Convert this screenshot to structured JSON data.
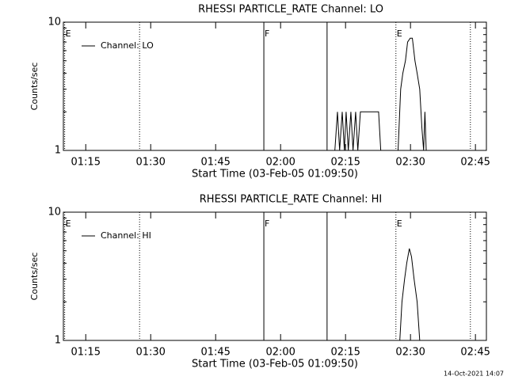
{
  "chart_data": [
    {
      "type": "line",
      "title": "RHESSI PARTICLE_RATE Channel: LO",
      "xlabel": "Start Time (03-Feb-05 01:09:50)",
      "ylabel": "Counts/sec",
      "xlim": [
        0,
        97.7
      ],
      "xticks": [
        {
          "value": 5.167,
          "label": "01:15"
        },
        {
          "value": 20.167,
          "label": "01:30"
        },
        {
          "value": 35.167,
          "label": "01:45"
        },
        {
          "value": 50.167,
          "label": "02:00"
        },
        {
          "value": 65.167,
          "label": "02:15"
        },
        {
          "value": 80.167,
          "label": "02:30"
        },
        {
          "value": 95.167,
          "label": "02:45"
        }
      ],
      "ylim": [
        1,
        10
      ],
      "yticks": [
        1,
        10
      ],
      "minor_yticks": [
        2,
        3,
        4,
        5,
        6,
        7,
        8,
        9
      ],
      "log_y": true,
      "markers": [
        {
          "x": 0.3,
          "style": "dotted",
          "label": "E"
        },
        {
          "x": 17.6,
          "style": "dotted"
        },
        {
          "x": 46.3,
          "style": "solid",
          "label": "F"
        },
        {
          "x": 60.9,
          "style": "solid"
        },
        {
          "x": 76.8,
          "style": "dotted",
          "label": "E"
        },
        {
          "x": 94.0,
          "style": "dotted"
        }
      ],
      "series": [
        {
          "name": "Channel: LO",
          "color": "#000000",
          "x": [
            62.7,
            63.3,
            63.8,
            64.4,
            64.9,
            65.3,
            65.8,
            66.4,
            66.9,
            67.5,
            68.0,
            68.6,
            72.8,
            73.3,
            75.0,
            77.3,
            77.9,
            78.4,
            79.0,
            79.5,
            80.1,
            80.6,
            81.2,
            81.7,
            82.3,
            82.8,
            83.2,
            83.5,
            83.8
          ],
          "values": [
            1,
            2,
            1,
            2,
            1,
            2,
            1,
            2,
            1,
            2,
            1,
            2,
            2,
            1,
            null,
            1,
            3,
            4,
            5,
            7,
            7.5,
            7.5,
            5,
            4,
            3,
            1.5,
            1,
            2,
            1
          ]
        }
      ]
    },
    {
      "type": "line",
      "title": "RHESSI PARTICLE_RATE Channel: HI",
      "xlabel": "Start Time (03-Feb-05 01:09:50)",
      "ylabel": "Counts/sec",
      "xlim": [
        0,
        97.7
      ],
      "xticks": [
        {
          "value": 5.167,
          "label": "01:15"
        },
        {
          "value": 20.167,
          "label": "01:30"
        },
        {
          "value": 35.167,
          "label": "01:45"
        },
        {
          "value": 50.167,
          "label": "02:00"
        },
        {
          "value": 65.167,
          "label": "02:15"
        },
        {
          "value": 80.167,
          "label": "02:30"
        },
        {
          "value": 95.167,
          "label": "02:45"
        }
      ],
      "ylim": [
        1,
        10
      ],
      "yticks": [
        1,
        10
      ],
      "minor_yticks": [
        2,
        3,
        4,
        5,
        6,
        7,
        8,
        9
      ],
      "log_y": true,
      "markers": [
        {
          "x": 0.3,
          "style": "dotted",
          "label": "E"
        },
        {
          "x": 17.6,
          "style": "dotted"
        },
        {
          "x": 46.3,
          "style": "solid",
          "label": "F"
        },
        {
          "x": 60.9,
          "style": "solid"
        },
        {
          "x": 76.8,
          "style": "dotted",
          "label": "E"
        },
        {
          "x": 94.0,
          "style": "dotted"
        }
      ],
      "series": [
        {
          "name": "Channel: HI",
          "color": "#000000",
          "x": [
            77.7,
            78.2,
            78.8,
            79.3,
            79.9,
            80.4,
            81.0,
            81.7,
            82.3
          ],
          "values": [
            1,
            2,
            3,
            4,
            5.2,
            4.5,
            3,
            2,
            1
          ]
        }
      ]
    }
  ],
  "footer": "14-Oct-2021 14:07"
}
